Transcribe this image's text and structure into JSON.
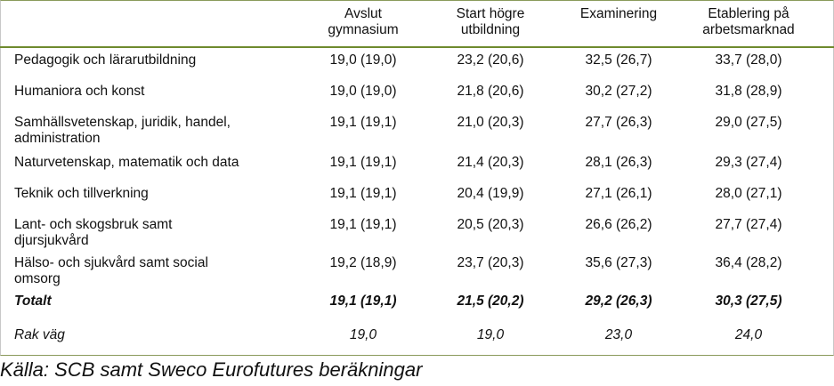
{
  "columns": [
    "Avslut gymnasium",
    "Start högre utbildning",
    "Examinering",
    "Etablering på arbetsmarknad"
  ],
  "column_lines": [
    [
      "Avslut",
      "gymnasium"
    ],
    [
      "Start högre",
      "utbildning"
    ],
    [
      "Examinering"
    ],
    [
      "Etablering på",
      "arbetsmarknad"
    ]
  ],
  "rows": [
    {
      "label_lines": [
        "Pedagogik och lärarutbildning"
      ],
      "values": [
        "19,0 (19,0)",
        "23,2 (20,6)",
        "32,5 (26,7)",
        "33,7 (28,0)"
      ]
    },
    {
      "label_lines": [
        "Humaniora och konst"
      ],
      "values": [
        "19,0 (19,0)",
        "21,8 (20,6)",
        "30,2 (27,2)",
        "31,8 (28,9)"
      ]
    },
    {
      "label_lines": [
        "Samhällsvetenskap, juridik, handel,",
        "administration"
      ],
      "values": [
        "19,1 (19,1)",
        "21,0 (20,3)",
        "27,7 (26,3)",
        "29,0 (27,5)"
      ]
    },
    {
      "label_lines": [
        "Naturvetenskap, matematik och data"
      ],
      "values": [
        "19,1 (19,1)",
        "21,4 (20,3)",
        "28,1 (26,3)",
        "29,3 (27,4)"
      ]
    },
    {
      "label_lines": [
        "Teknik och tillverkning"
      ],
      "values": [
        "19,1 (19,1)",
        "20,4 (19,9)",
        "27,1 (26,1)",
        "28,0 (27,1)"
      ]
    },
    {
      "label_lines": [
        "Lant- och skogsbruk samt",
        "djursjukvård"
      ],
      "values": [
        "19,1 (19,1)",
        "20,5 (20,3)",
        "26,6 (26,2)",
        "27,7 (27,4)"
      ]
    },
    {
      "label_lines": [
        "Hälso- och sjukvård samt social",
        "omsorg"
      ],
      "values": [
        "19,2 (18,9)",
        "23,7 (20,3)",
        "35,6 (27,3)",
        "36,4 (28,2)"
      ]
    }
  ],
  "total": {
    "label": "Totalt",
    "values": [
      "19,1 (19,1)",
      "21,5 (20,2)",
      "29,2 (26,3)",
      "30,3 (27,5)"
    ]
  },
  "rak_vag": {
    "label": "Rak väg",
    "values": [
      "19,0",
      "19,0",
      "23,0",
      "24,0"
    ]
  },
  "source": "Källa: SCB samt Sweco Eurofutures beräkningar"
}
